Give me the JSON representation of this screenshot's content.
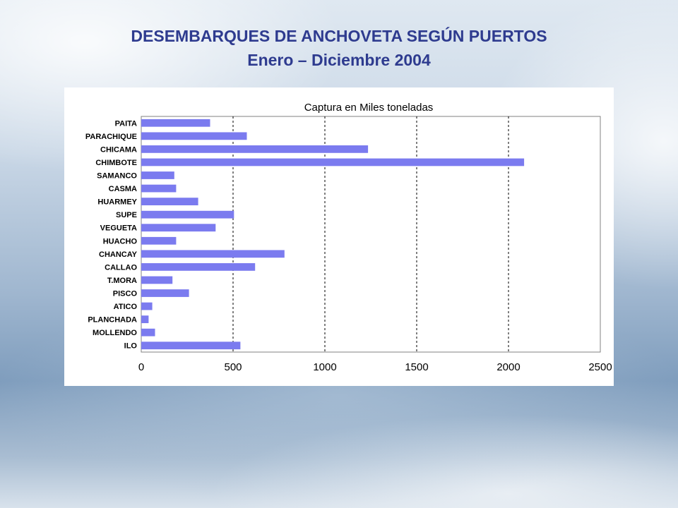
{
  "slide": {
    "title_line1": "DESEMBARQUES DE ANCHOVETA SEGÚN PUERTOS",
    "title_line2": "Enero  – Diciembre 2004",
    "title_color": "#2e3b8f"
  },
  "chart_data": {
    "type": "bar",
    "orientation": "horizontal",
    "title": "Captura en Miles toneladas",
    "categories": [
      "PAITA",
      "PARACHIQUE",
      "CHICAMA",
      "CHIMBOTE",
      "SAMANCO",
      "CASMA",
      "HUARMEY",
      "SUPE",
      "VEGUETA",
      "HUACHO",
      "CHANCAY",
      "CALLAO",
      "T.MORA",
      "PISCO",
      "ATICO",
      "PLANCHADA",
      "MOLLENDO",
      "ILO"
    ],
    "values": [
      375,
      575,
      1235,
      2085,
      180,
      190,
      310,
      505,
      405,
      190,
      780,
      620,
      170,
      260,
      60,
      40,
      75,
      540
    ],
    "xticks": [
      "0",
      "500",
      "1000",
      "1500",
      "2000",
      "2500"
    ],
    "xlim": [
      0,
      2500
    ],
    "grid": "vertical-dashed",
    "bar_color": "#7b7bef",
    "legend": "none"
  }
}
